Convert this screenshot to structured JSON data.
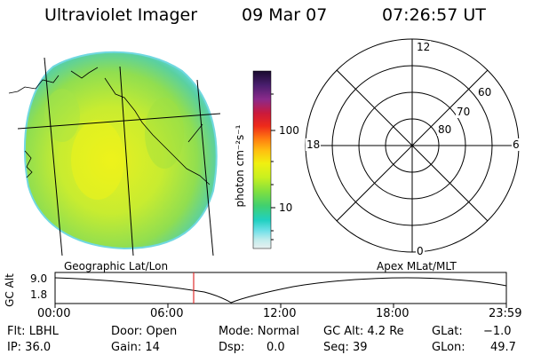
{
  "header": {
    "instrument": "Ultraviolet Imager",
    "date": "09 Mar 07",
    "time": "07:26:57 UT"
  },
  "colorbar": {
    "unit_label": "photon cm⁻²s⁻¹",
    "tick_labels": [
      "100",
      "10"
    ],
    "scale": "log",
    "colors_top_to_bottom": [
      "#1a0a2e",
      "#4a1e6e",
      "#8b2a8b",
      "#cc1a3a",
      "#ee2a1a",
      "#ff7a10",
      "#ffc010",
      "#f0f010",
      "#c8f020",
      "#80e040",
      "#40d070",
      "#20d0c0",
      "#70e0e8",
      "#c0ecec",
      "#e8f0f0"
    ]
  },
  "polar_grid": {
    "mlt_labels": {
      "top": "12",
      "left": "18",
      "right": "6",
      "bottom": "0"
    },
    "lat_labels": [
      "60",
      "70",
      "80"
    ]
  },
  "timeline": {
    "left_label": "Geographic Lat/Lon",
    "right_label": "Apex MLat/MLT",
    "y_axis_label": "GC Alt",
    "y_ticks": [
      "9.0",
      "1.8"
    ],
    "x_ticks": [
      "00:00",
      "06:00",
      "12:00",
      "18:00",
      "23:59"
    ],
    "marker_color": "#e03030"
  },
  "info": {
    "flt": "Flt: LBHL",
    "ip": "IP: 36.0",
    "door": "Door: Open",
    "gain": "Gain: 14",
    "mode": "Mode: Normal",
    "dsp_label": "Dsp:",
    "dsp_value": "0.0",
    "gc_alt": "GC Alt: 4.2 Re",
    "seq": "Seq: 39",
    "glat_label": "GLat:",
    "glat_value": "−1.0",
    "glon_label": "GLon:",
    "glon_value": "49.7"
  }
}
